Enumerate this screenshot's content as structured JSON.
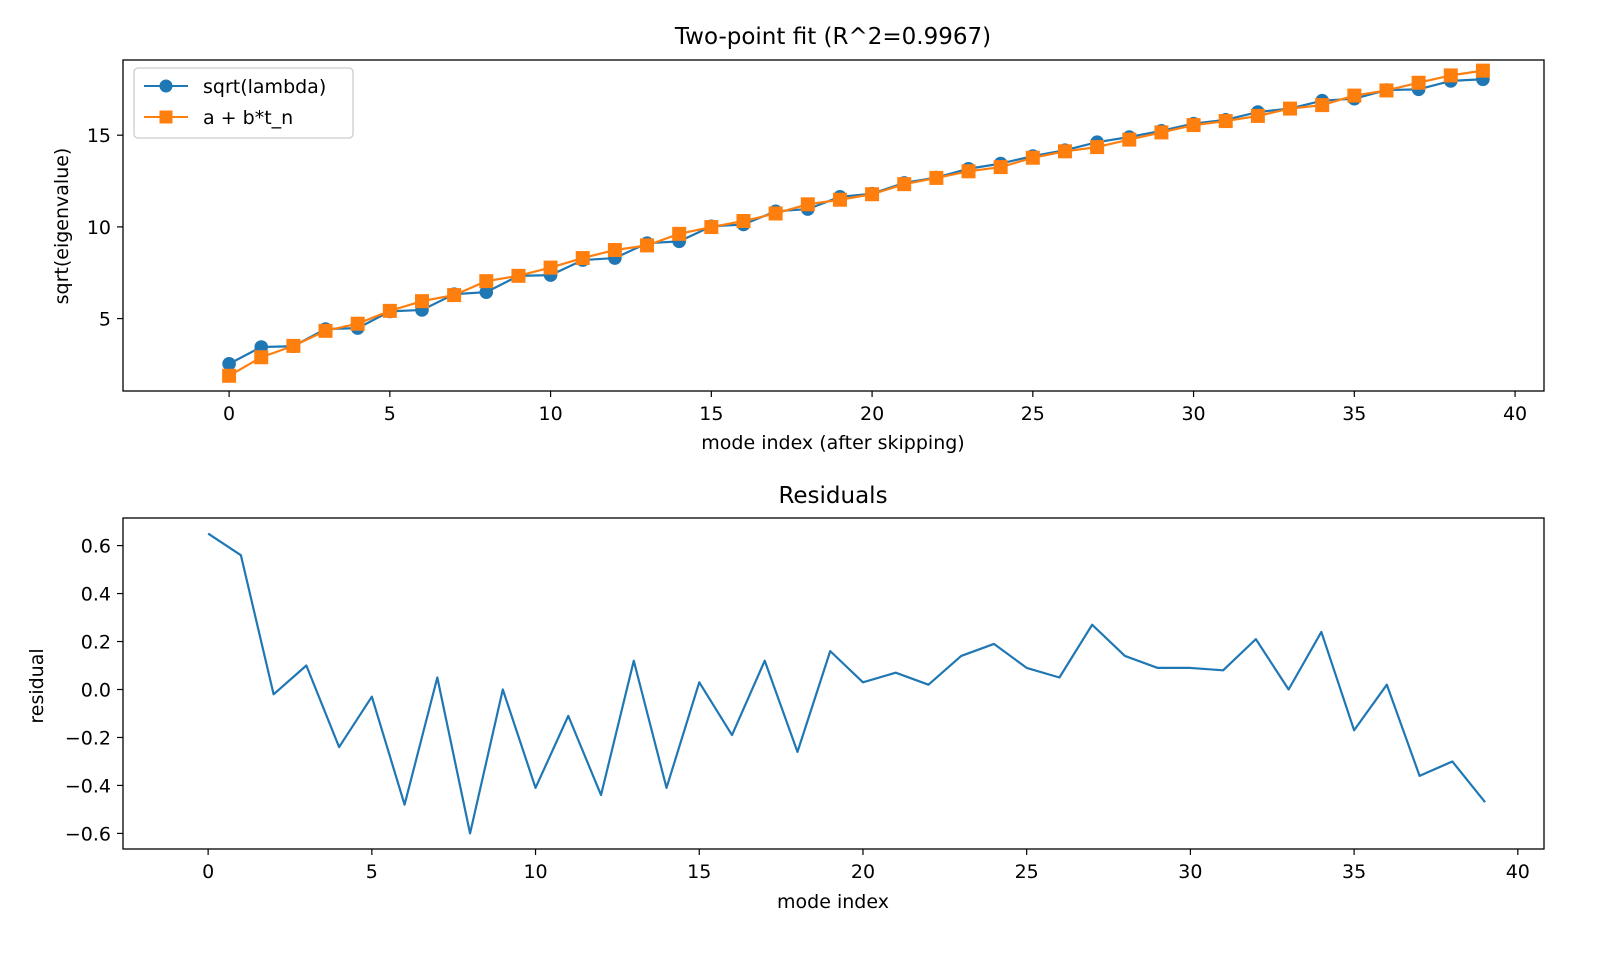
{
  "chart_data": [
    {
      "type": "line",
      "title": "Two-point fit (R^2=0.9967)",
      "xlabel": "mode index (after skipping)",
      "ylabel": "sqrt(eigenvalue)",
      "xlim": [
        -3.3,
        40.9
      ],
      "ylim": [
        1.05,
        19.1
      ],
      "xticks": [
        0,
        5,
        10,
        15,
        20,
        25,
        30,
        35,
        40
      ],
      "yticks": [
        5,
        10,
        15
      ],
      "grid": false,
      "legend_position": "upper-left",
      "x": [
        0,
        1,
        2,
        3,
        4,
        5,
        6,
        7,
        8,
        9,
        10,
        11,
        12,
        13,
        14,
        15,
        16,
        17,
        18,
        19,
        20,
        21,
        22,
        23,
        24,
        25,
        26,
        27,
        28,
        29,
        30,
        31,
        32,
        33,
        34,
        35,
        36,
        37,
        38,
        39
      ],
      "series": [
        {
          "name": "sqrt(lambda)",
          "color": "#1f77b4",
          "marker": "circle",
          "values": [
            2.53,
            3.45,
            3.49,
            4.43,
            4.48,
            5.39,
            5.47,
            6.33,
            6.44,
            7.33,
            7.37,
            8.19,
            8.3,
            9.11,
            9.21,
            10.03,
            10.13,
            10.85,
            10.97,
            11.64,
            11.81,
            12.4,
            12.69,
            13.17,
            13.45,
            13.86,
            14.18,
            14.62,
            14.9,
            15.24,
            15.63,
            15.84,
            16.26,
            16.45,
            16.88,
            16.99,
            17.46,
            17.5,
            17.96,
            18.05
          ]
        },
        {
          "name": "a + b*t_n",
          "color": "#ff7f0e",
          "marker": "square",
          "values": [
            1.88,
            2.89,
            3.51,
            4.33,
            4.72,
            5.42,
            5.95,
            6.28,
            7.04,
            7.33,
            7.78,
            8.3,
            8.74,
            8.99,
            9.62,
            9.99,
            10.32,
            10.73,
            11.23,
            11.48,
            11.78,
            12.33,
            12.67,
            13.03,
            13.26,
            13.77,
            14.12,
            14.35,
            14.76,
            15.15,
            15.55,
            15.77,
            16.05,
            16.45,
            16.64,
            17.16,
            17.44,
            17.86,
            18.26,
            18.52
          ]
        }
      ]
    },
    {
      "type": "line",
      "title": "Residuals",
      "xlabel": "mode index",
      "ylabel": "residual",
      "xlim": [
        -2.6,
        40.8
      ],
      "ylim": [
        -0.665,
        0.715
      ],
      "xticks": [
        0,
        5,
        10,
        15,
        20,
        25,
        30,
        35,
        40
      ],
      "yticks": [
        -0.6,
        -0.4,
        -0.2,
        0.0,
        0.2,
        0.4,
        0.6
      ],
      "ytick_labels": [
        "−0.6",
        "−0.4",
        "−0.2",
        "0.0",
        "0.2",
        "0.4",
        "0.6"
      ],
      "grid": false,
      "x": [
        0,
        1,
        2,
        3,
        4,
        5,
        6,
        7,
        8,
        9,
        10,
        11,
        12,
        13,
        14,
        15,
        16,
        17,
        18,
        19,
        20,
        21,
        22,
        23,
        24,
        25,
        26,
        27,
        28,
        29,
        30,
        31,
        32,
        33,
        34,
        35,
        36,
        37,
        38,
        39
      ],
      "series": [
        {
          "color": "#1f77b4",
          "values": [
            0.65,
            0.56,
            -0.02,
            0.1,
            -0.24,
            -0.03,
            -0.48,
            0.05,
            -0.6,
            0.0,
            -0.41,
            -0.11,
            -0.44,
            0.12,
            -0.41,
            0.03,
            -0.19,
            0.12,
            -0.26,
            0.16,
            0.03,
            0.07,
            0.02,
            0.14,
            0.19,
            0.09,
            0.05,
            0.27,
            0.14,
            0.09,
            0.09,
            0.08,
            0.21,
            0.0,
            0.24,
            -0.17,
            0.02,
            -0.36,
            -0.3,
            -0.47
          ]
        }
      ]
    }
  ]
}
